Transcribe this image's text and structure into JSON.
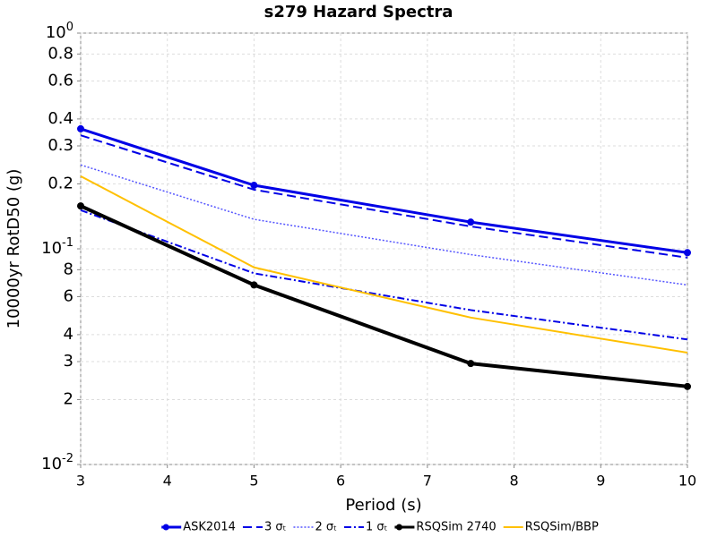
{
  "chart_data": {
    "type": "line",
    "title": "s279 Hazard Spectra",
    "x_label": "Period (s)",
    "y_label": "10000yr RotD50 (g)",
    "xlim": [
      3,
      10
    ],
    "xticks": [
      3,
      4,
      5,
      6,
      7,
      8,
      9,
      10
    ],
    "ylim": [
      0.01,
      1
    ],
    "y_scale": "log",
    "yticks": [
      {
        "value": 1,
        "label": "10^0"
      },
      0.8,
      0.6,
      0.4,
      0.3,
      0.2,
      {
        "value": 0.1,
        "label": "10^-1"
      },
      {
        "value": 0.08,
        "label": "8"
      },
      {
        "value": 0.06,
        "label": "6"
      },
      {
        "value": 0.04,
        "label": "4"
      },
      {
        "value": 0.03,
        "label": "3"
      },
      {
        "value": 0.02,
        "label": "2"
      },
      {
        "value": 0.01,
        "label": "10^-2"
      }
    ],
    "grid": true,
    "legend": "bottom",
    "series": [
      {
        "name": "ASK2014",
        "color": "#0000e6",
        "linestyle": "solid",
        "linewidth": 3,
        "marker": true,
        "x": [
          3,
          5,
          7.5,
          10
        ],
        "values": [
          0.36,
          0.197,
          0.133,
          0.096
        ]
      },
      {
        "name": "3 σₜ",
        "color": "#0000e6",
        "linestyle": "dashed",
        "linewidth": 2,
        "marker": false,
        "x": [
          3,
          5,
          7.5,
          10
        ],
        "values": [
          0.336,
          0.188,
          0.127,
          0.091
        ]
      },
      {
        "name": "2 σₜ",
        "color": "#5555ff",
        "linestyle": "dotted",
        "linewidth": 1.5,
        "marker": false,
        "x": [
          3,
          5,
          7.5,
          10
        ],
        "values": [
          0.245,
          0.137,
          0.094,
          0.068
        ]
      },
      {
        "name": "1 σₜ",
        "color": "#0000e6",
        "linestyle": "dashdot",
        "linewidth": 2,
        "marker": false,
        "x": [
          3,
          5,
          7.5,
          10
        ],
        "values": [
          0.151,
          0.077,
          0.052,
          0.038
        ]
      },
      {
        "name": "RSQSim 2740",
        "color": "#000000",
        "linestyle": "solid",
        "linewidth": 4,
        "marker": true,
        "x": [
          3,
          5,
          7.5,
          10
        ],
        "values": [
          0.158,
          0.068,
          0.0294,
          0.023
        ]
      },
      {
        "name": "RSQSim/BBP",
        "color": "#ffc000",
        "linestyle": "solid",
        "linewidth": 2,
        "marker": false,
        "x": [
          3,
          5,
          7.5,
          10
        ],
        "values": [
          0.217,
          0.082,
          0.048,
          0.033
        ]
      }
    ]
  }
}
